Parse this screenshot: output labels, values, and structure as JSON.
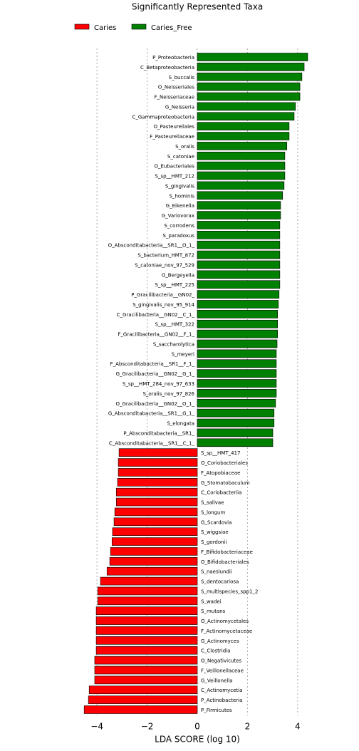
{
  "chart_data": {
    "type": "hbar",
    "title": "Significantly Represented Taxa",
    "xlabel": "LDA SCORE (log 10)",
    "xlim": [
      -4.6,
      4.6
    ],
    "xticks": [
      {
        "value": -4,
        "label": "−4"
      },
      {
        "value": -2,
        "label": "−2"
      },
      0,
      2,
      4
    ],
    "grid": true,
    "legend": "upper left",
    "series": [
      {
        "name": "Caries_Free",
        "color": "#008000",
        "categories": [
          "P_Proteobacteria",
          "C_Betaproteobacteria",
          "S_buccalis",
          "O_Neisseriales",
          "F_Neisseriaceae",
          "G_Neisseria",
          "C_Gammaproteobacteria",
          "O_Pasteurellales",
          "F_Pasteurellaceae",
          "S_oralis",
          "S_catoniae",
          "O_Eubacteriales",
          "S_sp__HMT_212",
          "S_gingivalis",
          "S_hominis",
          "G_Eikenella",
          "G_Variovorax",
          "S_corrodens",
          "S_paradoxus",
          "O_Absconditabacteria__SR1__O_1_",
          "S_bacterium_HMT_872",
          "S_catoniae_nov_97_529",
          "G_Bergeyella",
          "S_sp__HMT_225",
          "P_Gracilibacteria__GN02_",
          "S_gingivalis_nov_95_914",
          "C_Gracilibacteria__GN02__C_1_",
          "S_sp__HMT_322",
          "F_Gracilibacteria__GN02__F_1_",
          "S_saccharolytica",
          "S_meyeri",
          "F_Absconditabacteria__SR1__F_1_",
          "G_Gracilibacteria__GN02__G_1_",
          "S_sp__HMT_284_nov_97_633",
          "S_oralis_nov_97_826",
          "O_Gracilibacteria__GN02__O_1_",
          "G_Absconditabacteria__SR1__G_1_",
          "S_elongata",
          "P_Absconditabacteria__SR1_",
          "C_Absconditabacteria__SR1__C_1_"
        ],
        "values": [
          4.4,
          4.26,
          4.17,
          4.09,
          4.09,
          3.91,
          3.86,
          3.66,
          3.66,
          3.57,
          3.49,
          3.49,
          3.49,
          3.46,
          3.4,
          3.32,
          3.32,
          3.29,
          3.29,
          3.29,
          3.29,
          3.29,
          3.29,
          3.29,
          3.26,
          3.23,
          3.2,
          3.2,
          3.2,
          3.18,
          3.15,
          3.15,
          3.15,
          3.15,
          3.15,
          3.12,
          3.06,
          3.06,
          3.01,
          3.01
        ]
      },
      {
        "name": "Caries",
        "color": "#ff0000",
        "categories": [
          "S_sp__HMT_417",
          "O_Coriobacteriales",
          "F_Atopobiaceae",
          "G_Stomatobaculum",
          "C_Coriobacteriia",
          "S_salivae",
          "S_longum",
          "G_Scardovia",
          "S_wiggsiae",
          "S_gordonii",
          "F_Bifidobacteriaceae",
          "O_Bifidobacteriales",
          "S_naeslundii",
          "S_dentocariosa",
          "S_multispecies_spp1_2",
          "S_wadei",
          "S_mutans",
          "O_Actinomycetales",
          "F_Actinomycetaceae",
          "G_Actinomyces",
          "C_Clostridia",
          "O_Negativicutes",
          "F_Veillonellaceae",
          "G_Veillonella",
          "C_Actinomycetia",
          "P_Actinobacteria",
          "P_Firmicutes"
        ],
        "values": [
          -3.12,
          -3.15,
          -3.15,
          -3.18,
          -3.23,
          -3.23,
          -3.29,
          -3.32,
          -3.38,
          -3.4,
          -3.46,
          -3.49,
          -3.6,
          -3.86,
          -3.97,
          -3.97,
          -4.03,
          -4.03,
          -4.03,
          -4.03,
          -4.03,
          -4.09,
          -4.09,
          -4.09,
          -4.31,
          -4.34,
          -4.51
        ]
      }
    ]
  }
}
